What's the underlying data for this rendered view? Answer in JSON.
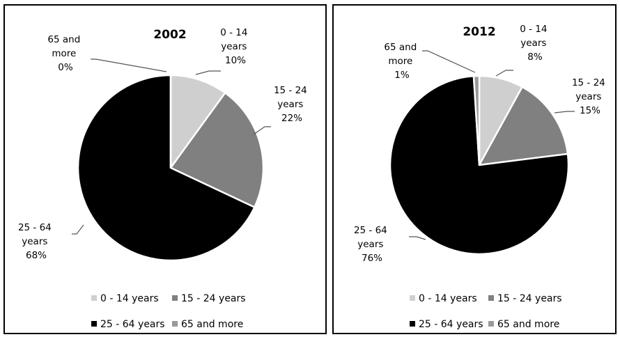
{
  "chart_data": [
    {
      "type": "pie",
      "title": "2002",
      "categories": [
        "0 - 14 years",
        "15 - 24 years",
        "25 - 64 years",
        "65 and more"
      ],
      "values": [
        10,
        22,
        68,
        0
      ],
      "value_labels": [
        "10%",
        "22%",
        "68%",
        "0%"
      ],
      "slice_labels": [
        [
          "0 - 14",
          "years",
          "10%"
        ],
        [
          "15 - 24",
          "years",
          "22%"
        ],
        [
          "25 - 64",
          "years",
          "68%"
        ],
        [
          "65 and",
          "more",
          "0%"
        ]
      ],
      "colors": [
        "#cfcfcf",
        "#808080",
        "#000000",
        "#999999"
      ],
      "legend": [
        "0 - 14 years",
        "15 - 24 years",
        "25 - 64 years",
        "65 and more"
      ]
    },
    {
      "type": "pie",
      "title": "2012",
      "categories": [
        "0 - 14 years",
        "15 - 24 years",
        "25 - 64 years",
        "65 and more"
      ],
      "values": [
        8,
        15,
        76,
        1
      ],
      "value_labels": [
        "8%",
        "15%",
        "76%",
        "1%"
      ],
      "slice_labels": [
        [
          "0 - 14",
          "years",
          "8%"
        ],
        [
          "15 - 24",
          "years",
          "15%"
        ],
        [
          "25 - 64",
          "years",
          "76%"
        ],
        [
          "65 and",
          "more",
          "1%"
        ]
      ],
      "colors": [
        "#cfcfcf",
        "#808080",
        "#000000",
        "#999999"
      ],
      "legend": [
        "0 - 14 years",
        "15 - 24 years",
        "25 - 64 years",
        "65 and more"
      ]
    }
  ]
}
